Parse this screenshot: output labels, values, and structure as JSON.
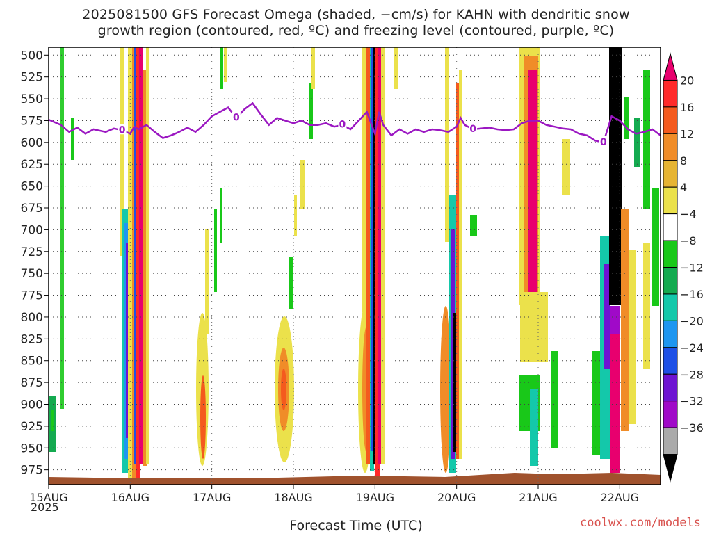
{
  "title_line1": "2025081500 GFS Forecast Omega (shaded, −cm/s) for KAHN with dendritic snow",
  "title_line2": "growth region (contoured, red, ºC) and freezing level (contoured, purple, ºC)",
  "xlabel": "Forecast Time (UTC)",
  "year_label": "2025",
  "credit": "coolwx.com/models",
  "chart_data": {
    "type": "heatmap",
    "y_ticks": [
      500,
      525,
      550,
      575,
      600,
      625,
      650,
      675,
      700,
      725,
      750,
      775,
      800,
      825,
      850,
      875,
      900,
      925,
      950,
      975
    ],
    "ylim": [
      491,
      992
    ],
    "x_ticks": [
      "15AUG",
      "16AUG",
      "17AUG",
      "18AUG",
      "19AUG",
      "20AUG",
      "21AUG",
      "22AUG"
    ],
    "xlim_days": [
      0,
      7.5
    ],
    "grid": true,
    "colorbar": {
      "labels": [
        "20",
        "16",
        "12",
        "8",
        "4",
        "−4",
        "−8",
        "−12",
        "−16",
        "−20",
        "−24",
        "−28",
        "−32",
        "−36"
      ],
      "colors": [
        "#e8006e",
        "#ff2a2a",
        "#f45a1e",
        "#f08c28",
        "#e6b432",
        "#ebe14b",
        "#ffffff",
        "#19c819",
        "#14aa50",
        "#14c8aa",
        "#1e96f0",
        "#1e50e6",
        "#6e14d2",
        "#a00ac8",
        "#aaaaaa",
        "#000000"
      ]
    },
    "freezing_level": {
      "label": "0",
      "color": "#9b17c2",
      "x_days": [
        0,
        0.15,
        0.25,
        0.35,
        0.45,
        0.55,
        0.7,
        0.8,
        0.9,
        1.0,
        1.05,
        1.1,
        1.2,
        1.3,
        1.4,
        1.5,
        1.6,
        1.7,
        1.8,
        1.9,
        2.0,
        2.1,
        2.2,
        2.3,
        2.4,
        2.5,
        2.6,
        2.7,
        2.8,
        2.9,
        3.0,
        3.1,
        3.2,
        3.3,
        3.4,
        3.5,
        3.6,
        3.7,
        3.8,
        3.9,
        4.0,
        4.05,
        4.1,
        4.2,
        4.3,
        4.4,
        4.5,
        4.6,
        4.7,
        4.8,
        4.9,
        5.0,
        5.05,
        5.1,
        5.2,
        5.3,
        5.4,
        5.5,
        5.6,
        5.7,
        5.8,
        5.9,
        6.0,
        6.1,
        6.2,
        6.3,
        6.4,
        6.5,
        6.6,
        6.7,
        6.8,
        6.9,
        7.0,
        7.1,
        7.2,
        7.3,
        7.4,
        7.5
      ],
      "pressure": [
        574,
        580,
        588,
        583,
        590,
        585,
        588,
        584,
        586,
        590,
        582,
        585,
        580,
        588,
        595,
        592,
        588,
        583,
        588,
        580,
        570,
        565,
        560,
        572,
        562,
        555,
        568,
        580,
        572,
        575,
        578,
        575,
        580,
        580,
        578,
        582,
        580,
        585,
        575,
        565,
        590,
        565,
        580,
        592,
        585,
        590,
        585,
        588,
        585,
        586,
        588,
        582,
        572,
        580,
        585,
        584,
        583,
        585,
        586,
        585,
        578,
        575,
        575,
        580,
        582,
        584,
        585,
        590,
        592,
        598,
        600,
        570,
        575,
        585,
        590,
        588,
        585,
        592
      ]
    }
  }
}
